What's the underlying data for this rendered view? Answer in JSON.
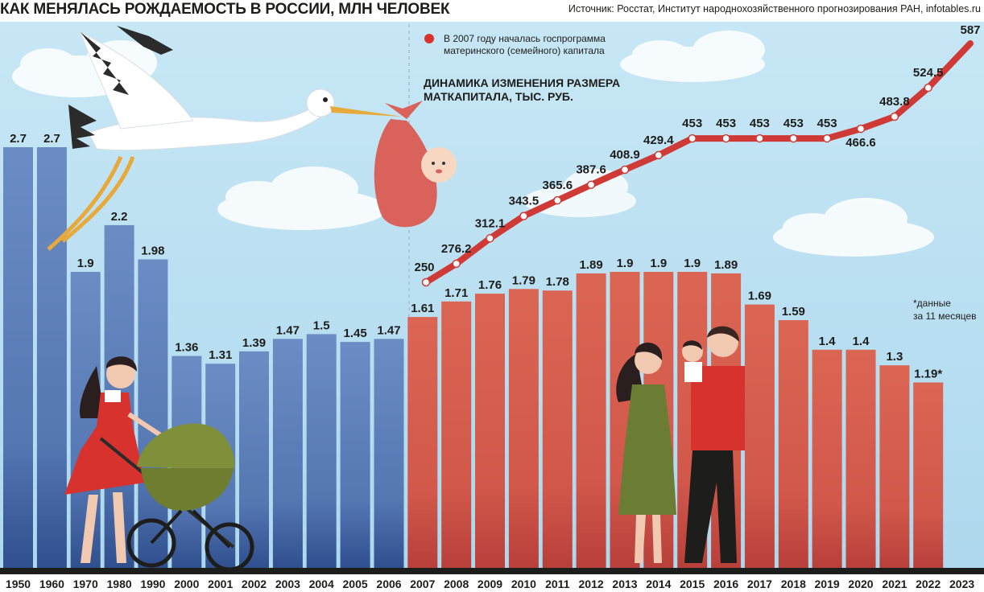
{
  "header": {
    "title": "КАК МЕНЯЛАСЬ РОЖДАЕМОСТЬ В РОССИИ, МЛН ЧЕЛОВЕК",
    "source": "Источник: Росстат, Институт народнохозяйственного прогнозирования РАН, infotables.ru"
  },
  "colors": {
    "sky": "#bfe2f2",
    "bar_blue": "#5e80b8",
    "bar_red": "#d45c4a",
    "line_red": "#cf3a36",
    "ground": "#1d1d1b"
  },
  "illustrations": [
    "stork-icon",
    "baby-bundle-icon",
    "mother-with-stroller-icon",
    "family-icon",
    "cloud-icon"
  ],
  "chart_data": [
    {
      "type": "bar",
      "categories": [
        "1950",
        "1960",
        "1970",
        "1980",
        "1990",
        "2000",
        "2001",
        "2002",
        "2003",
        "2004",
        "2005",
        "2006",
        "2007",
        "2008",
        "2009",
        "2010",
        "2011",
        "2012",
        "2013",
        "2014",
        "2015",
        "2016",
        "2017",
        "2018",
        "2019",
        "2020",
        "2021",
        "2022",
        "2023"
      ],
      "values": [
        2.7,
        2.7,
        1.9,
        2.2,
        1.98,
        1.36,
        1.31,
        1.39,
        1.47,
        1.5,
        1.45,
        1.47,
        1.61,
        1.71,
        1.76,
        1.79,
        1.78,
        1.89,
        1.9,
        1.9,
        1.9,
        1.89,
        1.69,
        1.59,
        1.4,
        1.4,
        1.3,
        1.19,
        null
      ],
      "value_labels": [
        "2.7",
        "2.7",
        "1.9",
        "2.2",
        "1.98",
        "1.36",
        "1.31",
        "1.39",
        "1.47",
        "1.5",
        "1.45",
        "1.47",
        "1.61",
        "1.71",
        "1.76",
        "1.79",
        "1.78",
        "1.89",
        "1.9",
        "1.9",
        "1.9",
        "1.89",
        "1.69",
        "1.59",
        "1.4",
        "1.4",
        "1.3",
        "1.19*",
        ""
      ],
      "title": "КАК МЕНЯЛАСЬ РОЖДАЕМОСТЬ В РОССИИ, МЛН ЧЕЛОВЕК",
      "footnote_lines": [
        "*данные",
        "за 11 месяцев"
      ]
    },
    {
      "type": "line",
      "title_lines": [
        "ДИНАМИКА ИЗМЕНЕНИЯ РАЗМЕРА",
        "МАТКАПИТАЛА, ТЫС. РУБ."
      ],
      "x": [
        "2007",
        "2008",
        "2009",
        "2010",
        "2011",
        "2012",
        "2013",
        "2014",
        "2015",
        "2016",
        "2017",
        "2018",
        "2019",
        "2020",
        "2021",
        "2022",
        "2023"
      ],
      "values": [
        250,
        276.2,
        312.1,
        343.5,
        365.6,
        387.6,
        408.9,
        429.4,
        453,
        453,
        453,
        453,
        453,
        466.6,
        483.8,
        524.5,
        587
      ],
      "value_labels": [
        "250",
        "276.2",
        "312.1",
        "343.5",
        "365.6",
        "387.6",
        "408.9",
        "429.4",
        "453",
        "453",
        "453",
        "453",
        "453",
        "466.6",
        "483.8",
        "524.5",
        "587"
      ],
      "legend_text_lines": [
        "В 2007 году началась госпрограмма",
        "материнского (семейного) капитала"
      ]
    }
  ]
}
